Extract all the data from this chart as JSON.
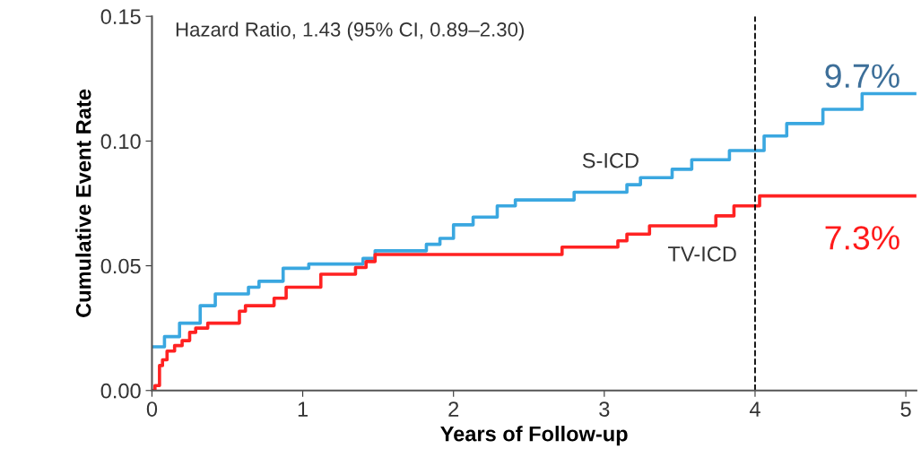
{
  "chart_data": {
    "type": "step",
    "xlabel": "Years of Follow-up",
    "ylabel": "Cumulative Event Rate",
    "xlim": [
      0,
      5.07
    ],
    "xticks": [
      0,
      1,
      2,
      3,
      4,
      5
    ],
    "ylim": [
      0,
      0.15
    ],
    "yticks": [
      {
        "value": 0,
        "label": "0.00"
      },
      0.05,
      {
        "value": 0.1,
        "label": "0.10"
      },
      0.15
    ],
    "grid": false,
    "legend": false,
    "line_style": "solid",
    "marker": "none",
    "series": [
      {
        "name": "S-ICD",
        "color": "#3aa7e0",
        "x": [
          0,
          0.083,
          0.183,
          0.32,
          0.42,
          0.64,
          0.71,
          0.87,
          1.04,
          1.4,
          1.48,
          1.82,
          1.91,
          2.0,
          2.13,
          2.29,
          2.41,
          2.8,
          3.15,
          3.24,
          3.45,
          3.58,
          3.83,
          4.06,
          4.21,
          4.45,
          4.71,
          5.07
        ],
        "values": [
          0.0175,
          0.0216,
          0.027,
          0.034,
          0.0387,
          0.0414,
          0.0438,
          0.049,
          0.0507,
          0.053,
          0.056,
          0.0586,
          0.061,
          0.0664,
          0.0695,
          0.074,
          0.0764,
          0.0795,
          0.0825,
          0.0853,
          0.0887,
          0.0925,
          0.0962,
          0.102,
          0.107,
          0.1127,
          0.119,
          0.119
        ]
      },
      {
        "name": "TV-ICD",
        "color": "#ff2222",
        "x": [
          0,
          0.02,
          0.05,
          0.07,
          0.1,
          0.15,
          0.2,
          0.25,
          0.29,
          0.37,
          0.58,
          0.62,
          0.81,
          0.89,
          1.12,
          1.35,
          1.42,
          1.48,
          2.72,
          3.09,
          3.15,
          3.3,
          3.74,
          3.86,
          4.03,
          5.07
        ],
        "values": [
          0,
          0.002,
          0.01,
          0.0123,
          0.0158,
          0.018,
          0.02,
          0.0233,
          0.025,
          0.027,
          0.0318,
          0.034,
          0.037,
          0.0414,
          0.0466,
          0.0493,
          0.0517,
          0.0545,
          0.0575,
          0.06,
          0.0627,
          0.066,
          0.07,
          0.074,
          0.078,
          0.078
        ]
      }
    ],
    "ref_lines": [
      {
        "axis": "x",
        "value": 4,
        "color": "#000000",
        "line_style": "dashed"
      }
    ],
    "annotations": [
      "Hazard Ratio, 1.43 (95% CI, 0.89–2.30)",
      {
        "text": "9.7%",
        "x": 4,
        "y": 0.097
      },
      {
        "text": "7.3%",
        "x": 4,
        "y": 0.073
      }
    ]
  }
}
